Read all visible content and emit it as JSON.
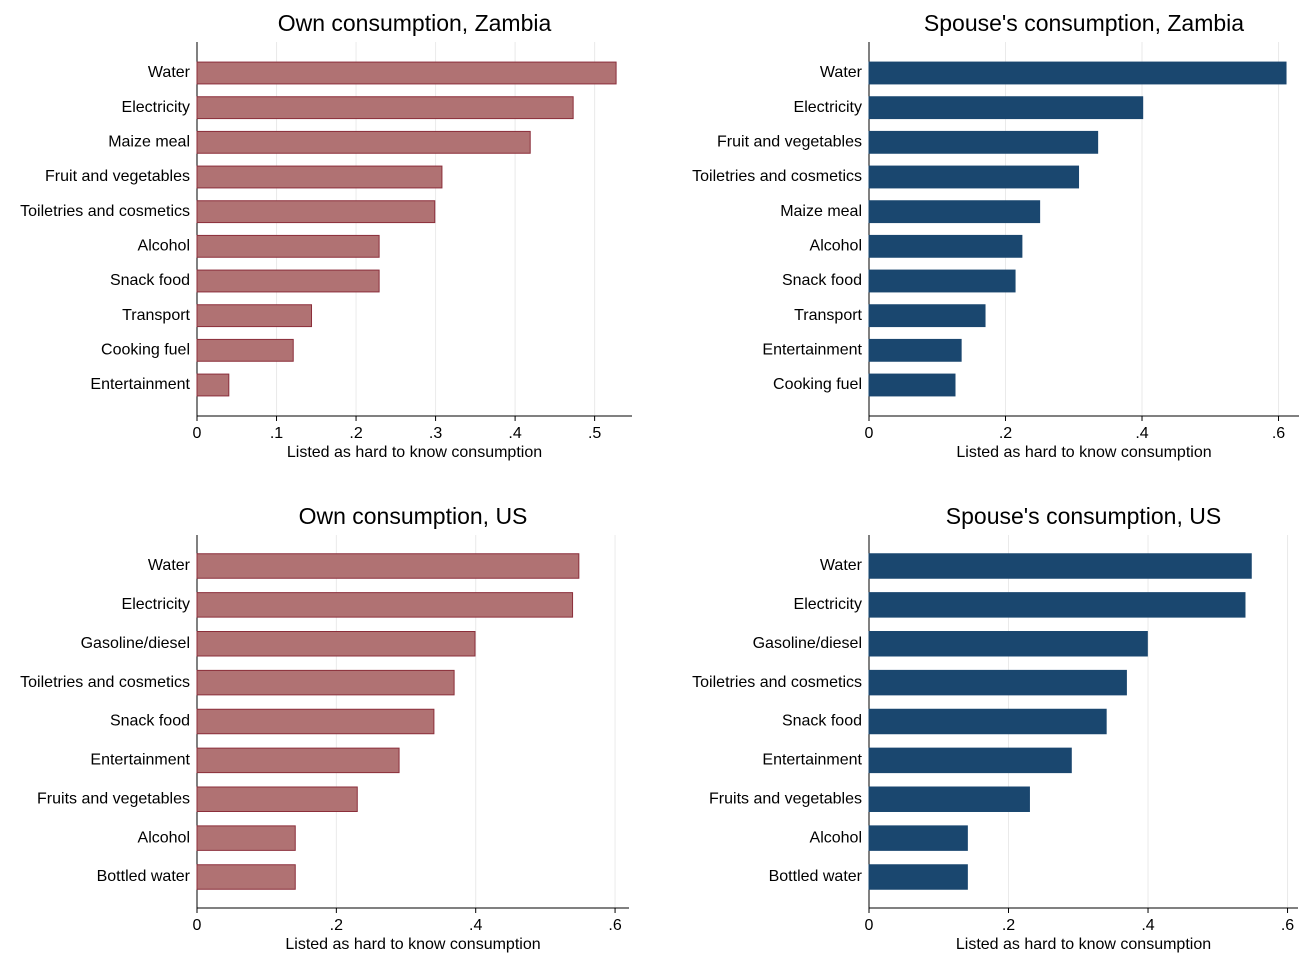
{
  "chart_data": [
    {
      "type": "hbar",
      "title": "Own consumption, Zambia",
      "xlabel": "Listed as hard to know consumption",
      "categories": [
        "Water",
        "Electricity",
        "Maize meal",
        "Fruit and vegetables",
        "Toiletries and cosmetics",
        "Alcohol",
        "Snack food",
        "Transport",
        "Cooking fuel",
        "Entertainment"
      ],
      "values": [
        0.527,
        0.473,
        0.419,
        0.308,
        0.299,
        0.229,
        0.229,
        0.144,
        0.121,
        0.04
      ],
      "color": "#b07273",
      "edgecolor": "#8b2e3a",
      "xlim": [
        0,
        0.547
      ],
      "xticks": [
        0,
        {
          "value": 0.1,
          "label": ".1"
        },
        {
          "value": 0.2,
          "label": ".2"
        },
        {
          "value": 0.3,
          "label": ".3"
        },
        {
          "value": 0.4,
          "label": ".4"
        },
        {
          "value": 0.5,
          "label": ".5"
        }
      ],
      "grid": true
    },
    {
      "type": "hbar",
      "title": "Spouse's consumption, Zambia",
      "xlabel": "Listed as hard to know consumption",
      "categories": [
        "Water",
        "Electricity",
        "Fruit and vegetables",
        "Toiletries and cosmetics",
        "Maize meal",
        "Alcohol",
        "Snack food",
        "Transport",
        "Entertainment",
        "Cooking fuel"
      ],
      "values": [
        0.611,
        0.401,
        0.335,
        0.307,
        0.25,
        0.224,
        0.214,
        0.17,
        0.135,
        0.126
      ],
      "color": "#1a476f",
      "edgecolor": "#1a476f",
      "xlim": [
        0,
        0.63
      ],
      "xticks": [
        0,
        {
          "value": 0.2,
          "label": ".2"
        },
        {
          "value": 0.4,
          "label": ".4"
        },
        {
          "value": 0.6,
          "label": ".6"
        }
      ],
      "grid": true
    },
    {
      "type": "hbar",
      "title": "Own consumption, US",
      "xlabel": "Listed as hard to know consumption",
      "categories": [
        "Water",
        "Electricity",
        "Gasoline/diesel",
        "Toiletries and cosmetics",
        "Snack food",
        "Entertainment",
        "Fruits and vegetables",
        "Alcohol",
        "Bottled water"
      ],
      "values": [
        0.548,
        0.539,
        0.399,
        0.369,
        0.34,
        0.29,
        0.23,
        0.141,
        0.141
      ],
      "color": "#b07273",
      "edgecolor": "#8b2e3a",
      "xlim": [
        0,
        0.62
      ],
      "xticks": [
        0,
        {
          "value": 0.2,
          "label": ".2"
        },
        {
          "value": 0.4,
          "label": ".4"
        },
        {
          "value": 0.6,
          "label": ".6"
        }
      ],
      "grid": true
    },
    {
      "type": "hbar",
      "title": "Spouse's consumption, US",
      "xlabel": "Listed as hard to know consumption",
      "categories": [
        "Water",
        "Electricity",
        "Gasoline/diesel",
        "Toiletries and cosmetics",
        "Snack food",
        "Entertainment",
        "Fruits and vegetables",
        "Alcohol",
        "Bottled water"
      ],
      "values": [
        0.548,
        0.539,
        0.399,
        0.369,
        0.34,
        0.29,
        0.23,
        0.141,
        0.141
      ],
      "color": "#1a476f",
      "edgecolor": "#1a476f",
      "xlim": [
        0,
        0.615
      ],
      "xticks": [
        0,
        {
          "value": 0.2,
          "label": ".2"
        },
        {
          "value": 0.4,
          "label": ".4"
        },
        {
          "value": 0.6,
          "label": ".6"
        }
      ],
      "grid": true
    }
  ]
}
